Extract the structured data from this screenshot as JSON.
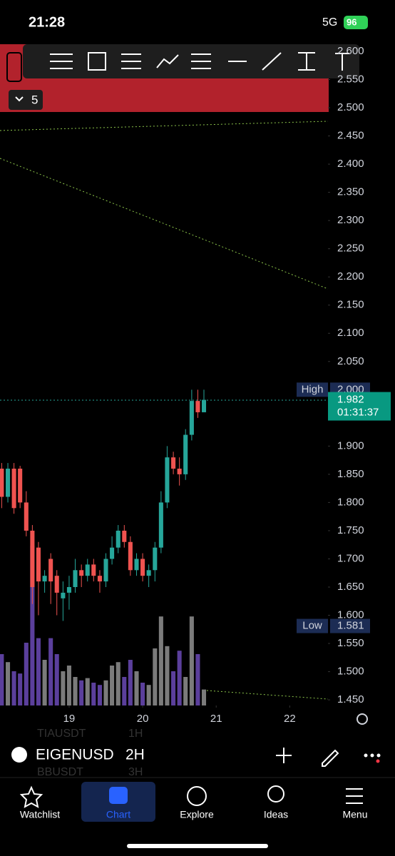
{
  "status_bar": {
    "time": "21:28",
    "network": "5G",
    "battery": "96"
  },
  "toolbar": {
    "collapse_count": "5"
  },
  "symbol_bar": {
    "symbol": "EIGENUSD",
    "interval": "2H",
    "ghost_rows": [
      {
        "symbol": "TIAUSDT",
        "interval": "1H"
      },
      {
        "symbol": "BBUSDT",
        "interval": "3H"
      }
    ]
  },
  "nav": {
    "items": [
      "Watchlist",
      "Chart",
      "Explore",
      "Ideas",
      "Menu"
    ],
    "active": "Chart"
  },
  "chart_data": {
    "type": "candlestick",
    "x": [
      18.083,
      18.167,
      18.25,
      18.333,
      18.417,
      18.5,
      18.583,
      18.667,
      18.75,
      18.833,
      18.917,
      19,
      19.083,
      19.167,
      19.25,
      19.333,
      19.417,
      19.5,
      19.583,
      19.667,
      19.75,
      19.833,
      19.917,
      20,
      20.083,
      20.167,
      20.25,
      20.333,
      20.417,
      20.5,
      20.583,
      20.667,
      20.75,
      20.833
    ],
    "open": [
      1.86,
      1.81,
      1.86,
      1.86,
      1.8,
      1.75,
      1.72,
      1.66,
      1.7,
      1.67,
      1.63,
      1.64,
      1.65,
      1.68,
      1.67,
      1.69,
      1.67,
      1.66,
      1.7,
      1.72,
      1.75,
      1.73,
      1.68,
      1.7,
      1.67,
      1.68,
      1.72,
      1.8,
      1.88,
      1.86,
      1.85,
      1.92,
      1.98,
      1.96
    ],
    "high": [
      1.87,
      1.87,
      1.87,
      1.865,
      1.82,
      1.76,
      1.73,
      1.68,
      1.71,
      1.68,
      1.66,
      1.67,
      1.7,
      1.69,
      1.7,
      1.7,
      1.68,
      1.71,
      1.74,
      1.76,
      1.76,
      1.74,
      1.71,
      1.71,
      1.69,
      1.73,
      1.82,
      1.9,
      1.89,
      1.88,
      1.93,
      2.0,
      2.0,
      2.0
    ],
    "low": [
      1.79,
      1.8,
      1.78,
      1.79,
      1.74,
      1.62,
      1.6,
      1.64,
      1.62,
      1.6,
      1.59,
      1.61,
      1.64,
      1.65,
      1.66,
      1.66,
      1.64,
      1.65,
      1.69,
      1.71,
      1.72,
      1.67,
      1.67,
      1.66,
      1.65,
      1.66,
      1.71,
      1.79,
      1.85,
      1.83,
      1.84,
      1.91,
      1.95,
      1.96
    ],
    "close": [
      1.81,
      1.86,
      1.79,
      1.8,
      1.75,
      1.65,
      1.66,
      1.67,
      1.66,
      1.64,
      1.64,
      1.65,
      1.68,
      1.67,
      1.69,
      1.67,
      1.66,
      1.7,
      1.72,
      1.75,
      1.73,
      1.68,
      1.7,
      1.67,
      1.68,
      1.72,
      1.8,
      1.88,
      1.86,
      1.85,
      1.92,
      1.98,
      1.96,
      1.982
    ],
    "volume": [
      45,
      38,
      30,
      28,
      55,
      140,
      59,
      40,
      59,
      45,
      30,
      35,
      25,
      22,
      24,
      20,
      18,
      22,
      35,
      38,
      25,
      40,
      30,
      20,
      18,
      50,
      78,
      52,
      30,
      48,
      25,
      78,
      45,
      14
    ],
    "up_color": "#26a69a",
    "down_color": "#ef5350",
    "volume_up_color": "#7b7b7b",
    "volume_down_color": "#5b3f9c",
    "xlim": [
      18.06,
      22.52
    ],
    "xticks": [
      19,
      20,
      21,
      22
    ],
    "ylim": [
      1.44,
      2.6
    ],
    "yticks": [
      {
        "value": 2.6,
        "label": "2.600"
      },
      {
        "value": 2.55,
        "label": "2.550"
      },
      {
        "value": 2.5,
        "label": "2.500"
      },
      {
        "value": 2.45,
        "label": "2.450"
      },
      {
        "value": 2.4,
        "label": "2.400"
      },
      {
        "value": 2.35,
        "label": "2.350"
      },
      {
        "value": 2.3,
        "label": "2.300"
      },
      {
        "value": 2.25,
        "label": "2.250"
      },
      {
        "value": 2.2,
        "label": "2.200"
      },
      {
        "value": 2.15,
        "label": "2.150"
      },
      {
        "value": 2.1,
        "label": "2.100"
      },
      {
        "value": 2.05,
        "label": "2.050"
      },
      {
        "value": 1.9,
        "label": "1.900"
      },
      {
        "value": 1.85,
        "label": "1.850"
      },
      {
        "value": 1.8,
        "label": "1.800"
      },
      {
        "value": 1.75,
        "label": "1.750"
      },
      {
        "value": 1.7,
        "label": "1.700"
      },
      {
        "value": 1.65,
        "label": "1.650"
      },
      {
        "value": 1.6,
        "label": "1.600"
      },
      {
        "value": 1.55,
        "label": "1.550"
      },
      {
        "value": 1.5,
        "label": "1.500"
      },
      {
        "value": 1.45,
        "label": "1.450"
      }
    ],
    "markers": [
      {
        "label": "High",
        "value": 2.0,
        "value_label": "2.000"
      },
      {
        "label": "Low",
        "value": 1.581,
        "value_label": "1.581"
      }
    ],
    "last_price": 1.982,
    "countdown": "01:31:37"
  }
}
